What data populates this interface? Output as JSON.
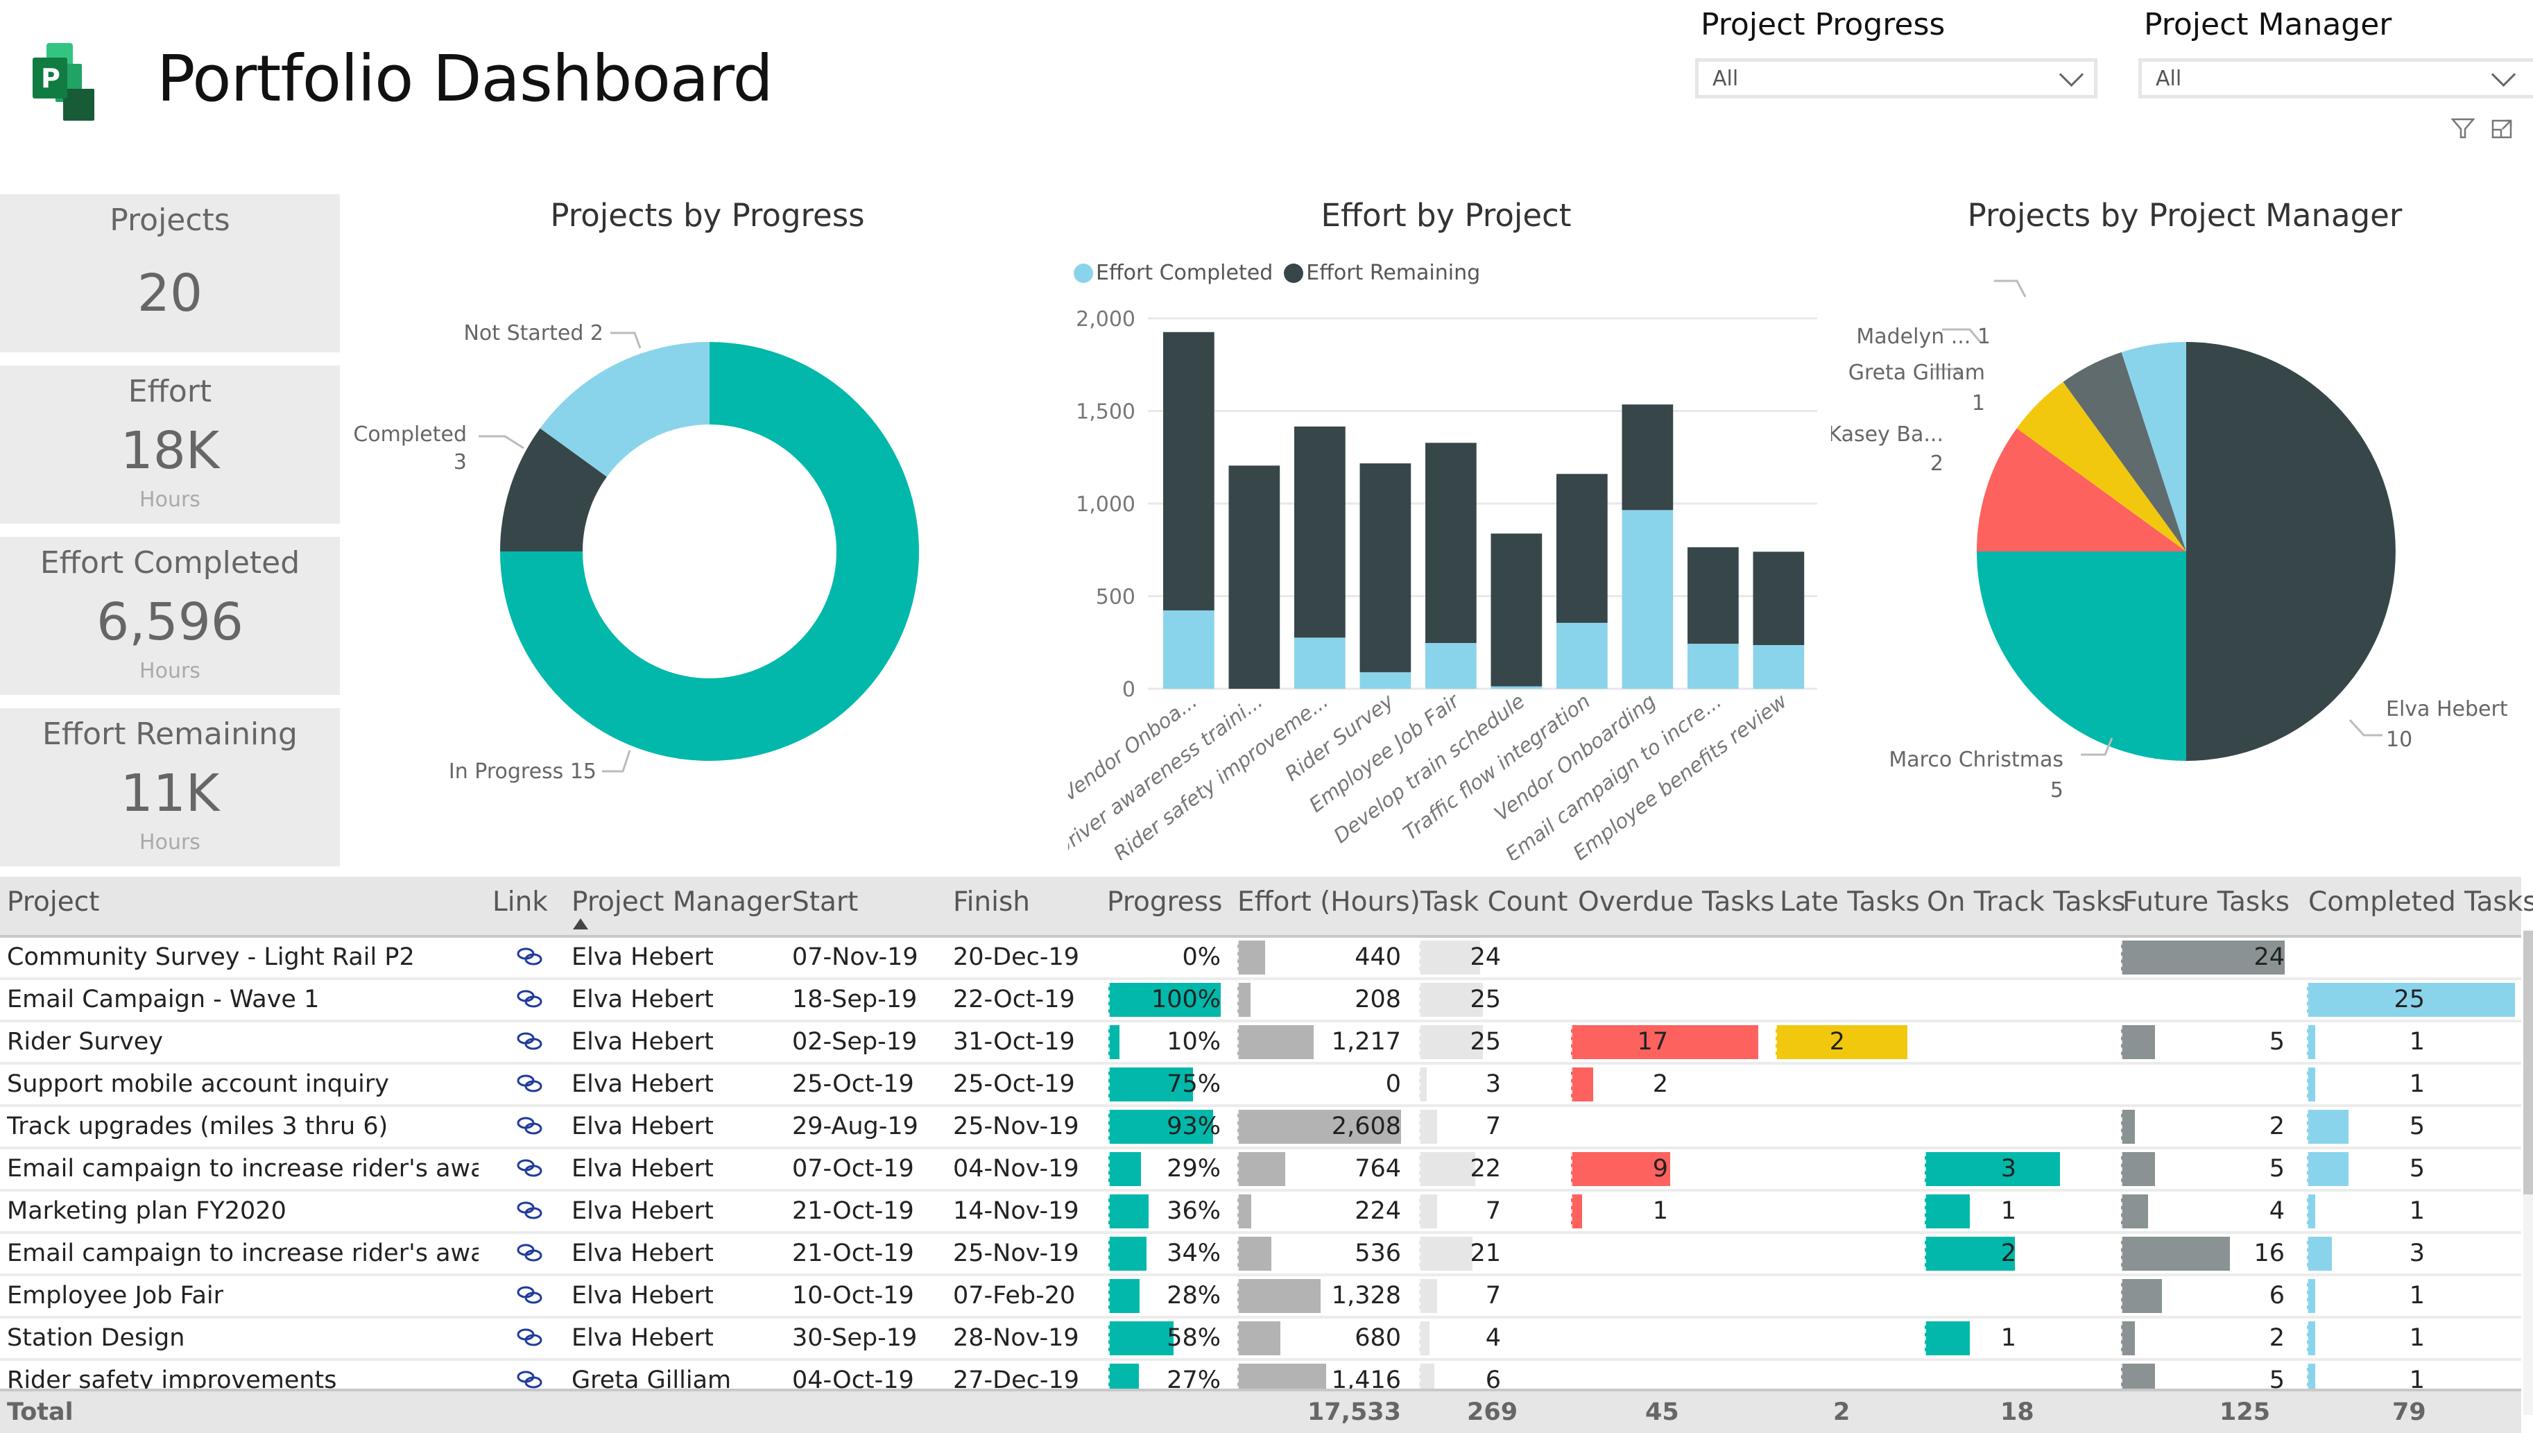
{
  "header": {
    "title": "Portfolio Dashboard",
    "logo_icon": "project-logo-icon",
    "logo_letter": "P"
  },
  "slicers": [
    {
      "label": "Project Progress",
      "value": "All"
    },
    {
      "label": "Project Manager",
      "value": "All"
    }
  ],
  "visual_header_icons": [
    "filter-icon",
    "focus-mode-icon"
  ],
  "kpis": [
    {
      "title": "Projects",
      "value": "20",
      "unit": ""
    },
    {
      "title": "Effort",
      "value": "18K",
      "unit": "Hours"
    },
    {
      "title": "Effort Completed",
      "value": "6,596",
      "unit": "Hours"
    },
    {
      "title": "Effort Remaining",
      "value": "11K",
      "unit": "Hours"
    }
  ],
  "colors": {
    "teal": "#01B8AA",
    "dark": "#374649",
    "light_blue": "#8AD4EB",
    "red": "#FD625E",
    "yellow": "#F2C80F",
    "gray": "#5F6B6D",
    "future_gray": "#8a9293",
    "effort_gray": "#b3b3b3",
    "task_gray": "#e6e6e6",
    "link_blue": "#1f3b9c"
  },
  "chart_data": [
    {
      "type": "pie",
      "variant": "donut",
      "title": "Projects by Progress",
      "labels": [
        "In Progress",
        "Not Started",
        "Completed"
      ],
      "values": [
        15,
        2,
        3
      ],
      "colors": [
        "#01B8AA",
        "#374649",
        "#8AD4EB"
      ],
      "data_labels": [
        "In Progress 15",
        "Not Started 2",
        "Completed 3"
      ]
    },
    {
      "type": "bar",
      "stacked": true,
      "title": "Effort by Project",
      "legend": [
        "Effort Completed",
        "Effort Remaining"
      ],
      "legend_position": "top-left",
      "categories": [
        "Vendor Onboa...",
        "Driver awareness traini...",
        "Rider safety improveme...",
        "Rider Survey",
        "Employee Job Fair",
        "Develop train schedule",
        "Traffic flow integration",
        "Vendor Onboarding",
        "Email campaign to incre...",
        "Employee benefits review"
      ],
      "series": [
        {
          "name": "Effort Completed",
          "color": "#8AD4EB",
          "values": [
            423,
            0,
            276,
            89,
            247,
            13,
            356,
            965,
            243,
            236
          ]
        },
        {
          "name": "Effort Remaining",
          "color": "#374649",
          "values": [
            1503,
            1205,
            1140,
            1128,
            1081,
            825,
            804,
            570,
            521,
            504
          ]
        }
      ],
      "yticks": [
        "0",
        "500",
        "1,000",
        "1,500",
        "2,000"
      ],
      "ylim": [
        0,
        2000
      ],
      "grid": true,
      "xlabel": "",
      "ylabel": ""
    },
    {
      "type": "pie",
      "title": "Projects by Project Manager",
      "labels": [
        "Elva Hebert",
        "Marco Christmas",
        "Kasey Ba...",
        "Greta Gilliam",
        "",
        "Madelyn ..."
      ],
      "values": [
        10,
        5,
        2,
        1,
        1,
        1
      ],
      "colors": [
        "#374649",
        "#01B8AA",
        "#FD625E",
        "#F2C80F",
        "#5F6B6D",
        "#8AD4EB"
      ],
      "data_labels": [
        "Elva Hebert 10",
        "Marco Christmas 5",
        "Kasey Ba... 2",
        "Greta Gilliam 1",
        "",
        "Madelyn ... 1"
      ]
    }
  ],
  "table": {
    "columns": [
      "Project",
      "Link",
      "Project Manager",
      "Start",
      "Finish",
      "Progress",
      "Effort (Hours)",
      "Task Count",
      "Overdue Tasks",
      "Late Tasks",
      "On Track Tasks",
      "Future Tasks",
      "Completed Tasks"
    ],
    "sorted_column": "Project Manager",
    "rows": [
      {
        "project": "Community Survey - Light Rail P2",
        "manager": "Elva Hebert",
        "start": "07-Nov-19",
        "finish": "20-Dec-19",
        "progress": "0%",
        "progress_pct": 0,
        "effort": "440",
        "effort_val": 440,
        "tasks": "24",
        "tasks_val": 24,
        "overdue": "",
        "late": "",
        "ontrack": "",
        "future": "24",
        "completed": ""
      },
      {
        "project": "Email Campaign - Wave 1",
        "manager": "Elva Hebert",
        "start": "18-Sep-19",
        "finish": "22-Oct-19",
        "progress": "100%",
        "progress_pct": 100,
        "effort": "208",
        "effort_val": 208,
        "tasks": "25",
        "tasks_val": 25,
        "overdue": "",
        "late": "",
        "ontrack": "",
        "future": "",
        "completed": "25"
      },
      {
        "project": "Rider Survey",
        "manager": "Elva Hebert",
        "start": "02-Sep-19",
        "finish": "31-Oct-19",
        "progress": "10%",
        "progress_pct": 10,
        "effort": "1,217",
        "effort_val": 1217,
        "tasks": "25",
        "tasks_val": 25,
        "overdue": "17",
        "late": "2",
        "ontrack": "",
        "future": "5",
        "completed": "1"
      },
      {
        "project": "Support mobile account inquiry",
        "manager": "Elva Hebert",
        "start": "25-Oct-19",
        "finish": "25-Oct-19",
        "progress": "75%",
        "progress_pct": 75,
        "effort": "0",
        "effort_val": 0,
        "tasks": "3",
        "tasks_val": 3,
        "overdue": "2",
        "late": "",
        "ontrack": "",
        "future": "",
        "completed": "1"
      },
      {
        "project": "Track upgrades (miles 3 thru 6)",
        "manager": "Elva Hebert",
        "start": "29-Aug-19",
        "finish": "25-Nov-19",
        "progress": "93%",
        "progress_pct": 93,
        "effort": "2,608",
        "effort_val": 2608,
        "tasks": "7",
        "tasks_val": 7,
        "overdue": "",
        "late": "",
        "ontrack": "",
        "future": "2",
        "completed": "5"
      },
      {
        "project": "Email campaign to increase rider's awaren...",
        "manager": "Elva Hebert",
        "start": "07-Oct-19",
        "finish": "04-Nov-19",
        "progress": "29%",
        "progress_pct": 29,
        "effort": "764",
        "effort_val": 764,
        "tasks": "22",
        "tasks_val": 22,
        "overdue": "9",
        "late": "",
        "ontrack": "3",
        "future": "5",
        "completed": "5"
      },
      {
        "project": "Marketing plan FY2020",
        "manager": "Elva Hebert",
        "start": "21-Oct-19",
        "finish": "14-Nov-19",
        "progress": "36%",
        "progress_pct": 36,
        "effort": "224",
        "effort_val": 224,
        "tasks": "7",
        "tasks_val": 7,
        "overdue": "1",
        "late": "",
        "ontrack": "1",
        "future": "4",
        "completed": "1"
      },
      {
        "project": "Email campaign to increase rider's awaren...",
        "manager": "Elva Hebert",
        "start": "21-Oct-19",
        "finish": "25-Nov-19",
        "progress": "34%",
        "progress_pct": 34,
        "effort": "536",
        "effort_val": 536,
        "tasks": "21",
        "tasks_val": 21,
        "overdue": "",
        "late": "",
        "ontrack": "2",
        "future": "16",
        "completed": "3"
      },
      {
        "project": "Employee Job Fair",
        "manager": "Elva Hebert",
        "start": "10-Oct-19",
        "finish": "07-Feb-20",
        "progress": "28%",
        "progress_pct": 28,
        "effort": "1,328",
        "effort_val": 1328,
        "tasks": "7",
        "tasks_val": 7,
        "overdue": "",
        "late": "",
        "ontrack": "",
        "future": "6",
        "completed": "1"
      },
      {
        "project": "Station Design",
        "manager": "Elva Hebert",
        "start": "30-Sep-19",
        "finish": "28-Nov-19",
        "progress": "58%",
        "progress_pct": 58,
        "effort": "680",
        "effort_val": 680,
        "tasks": "4",
        "tasks_val": 4,
        "overdue": "",
        "late": "",
        "ontrack": "1",
        "future": "2",
        "completed": "1"
      },
      {
        "project": "Rider safety improvements",
        "manager": "Greta Gilliam",
        "start": "04-Oct-19",
        "finish": "27-Dec-19",
        "progress": "27%",
        "progress_pct": 27,
        "effort": "1,416",
        "effort_val": 1416,
        "tasks": "6",
        "tasks_val": 6,
        "overdue": "",
        "late": "",
        "ontrack": "",
        "future": "5",
        "completed": "1"
      }
    ],
    "totals": {
      "label": "Total",
      "effort": "17,533",
      "tasks": "269",
      "overdue": "45",
      "late": "2",
      "ontrack": "18",
      "future": "125",
      "completed": "79"
    }
  }
}
